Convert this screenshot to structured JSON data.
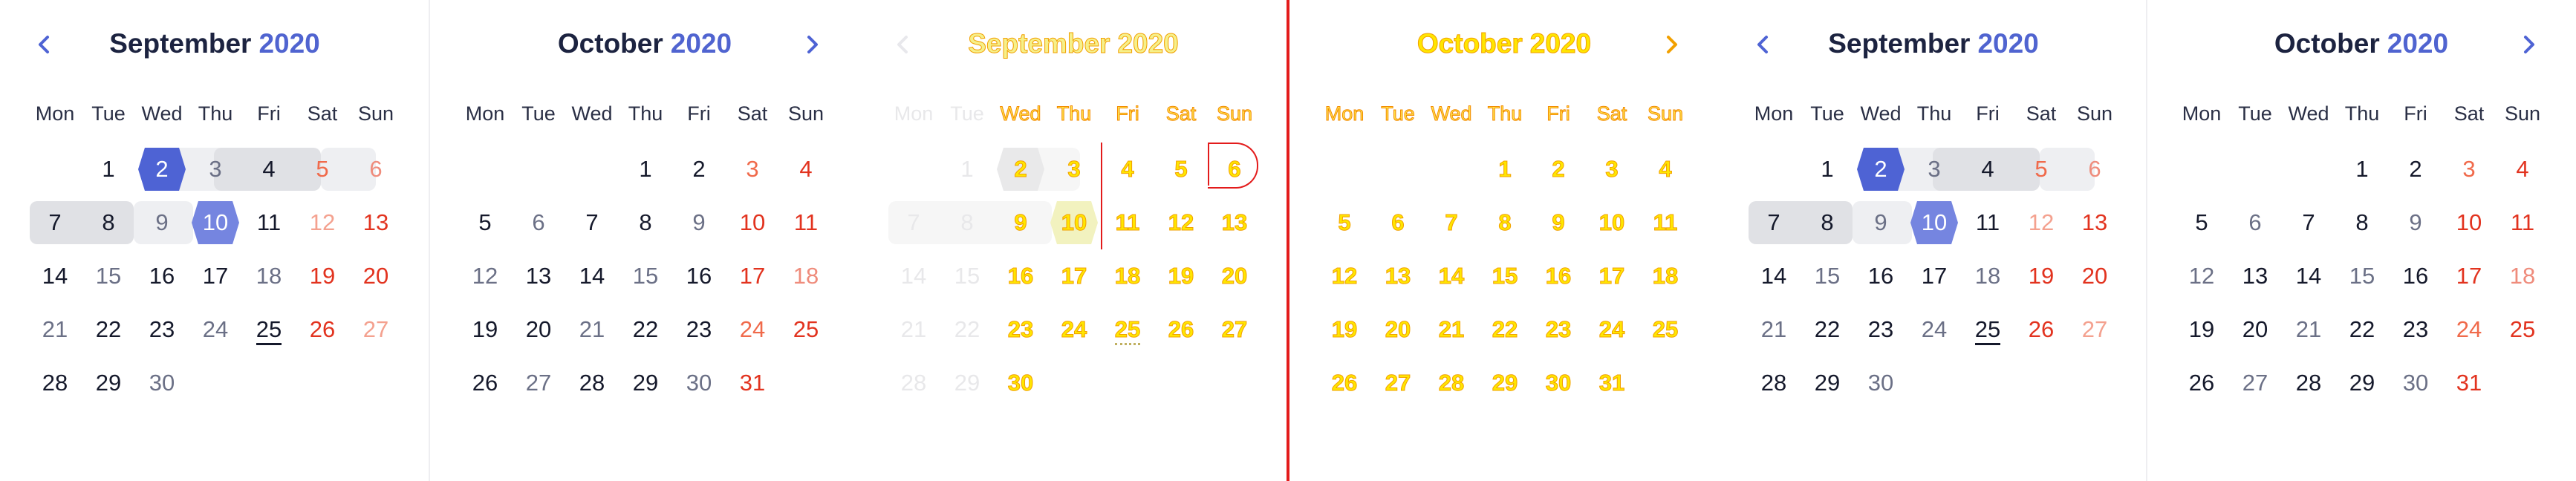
{
  "weekdays": [
    "Mon",
    "Tue",
    "Wed",
    "Thu",
    "Fri",
    "Sat",
    "Sun"
  ],
  "nav": {
    "prev_icon": "chevron-left-icon",
    "next_icon": "chevron-right-icon"
  },
  "colors": {
    "accent": "#4e63d4",
    "accent_light": "#7585e0",
    "weekend_sat": "#f06a4b",
    "weekend_sun": "#e2331f",
    "range_bg": "#eeeff2",
    "ghost_fill": "#ffe600",
    "ghost_stroke": "#f2a000",
    "guide_red": "#e31b1b"
  },
  "panels": [
    {
      "month": "September",
      "year": "2020"
    },
    {
      "month": "October",
      "year": "2020"
    },
    {
      "month": "September",
      "year": "2020"
    },
    {
      "month": "October",
      "year": "2020"
    },
    {
      "month": "September",
      "year": "2020"
    },
    {
      "month": "October",
      "year": "2020"
    }
  ],
  "september_rows": [
    [
      "",
      "1",
      "2",
      "3",
      "4",
      "5",
      "6"
    ],
    [
      "7",
      "8",
      "9",
      "10",
      "11",
      "12",
      "13"
    ],
    [
      "14",
      "15",
      "16",
      "17",
      "18",
      "19",
      "20"
    ],
    [
      "21",
      "22",
      "23",
      "24",
      "25",
      "26",
      "27"
    ],
    [
      "28",
      "29",
      "30",
      "",
      "",
      "",
      ""
    ]
  ],
  "october_rows": [
    [
      "",
      "",
      "",
      "1",
      "2",
      "3",
      "4"
    ],
    [
      "5",
      "6",
      "7",
      "8",
      "9",
      "10",
      "11"
    ],
    [
      "12",
      "13",
      "14",
      "15",
      "16",
      "17",
      "18"
    ],
    [
      "19",
      "20",
      "21",
      "22",
      "23",
      "24",
      "25"
    ],
    [
      "26",
      "27",
      "28",
      "29",
      "30",
      "31",
      ""
    ]
  ],
  "selection": {
    "start": "2",
    "end": "10",
    "today": "25"
  }
}
